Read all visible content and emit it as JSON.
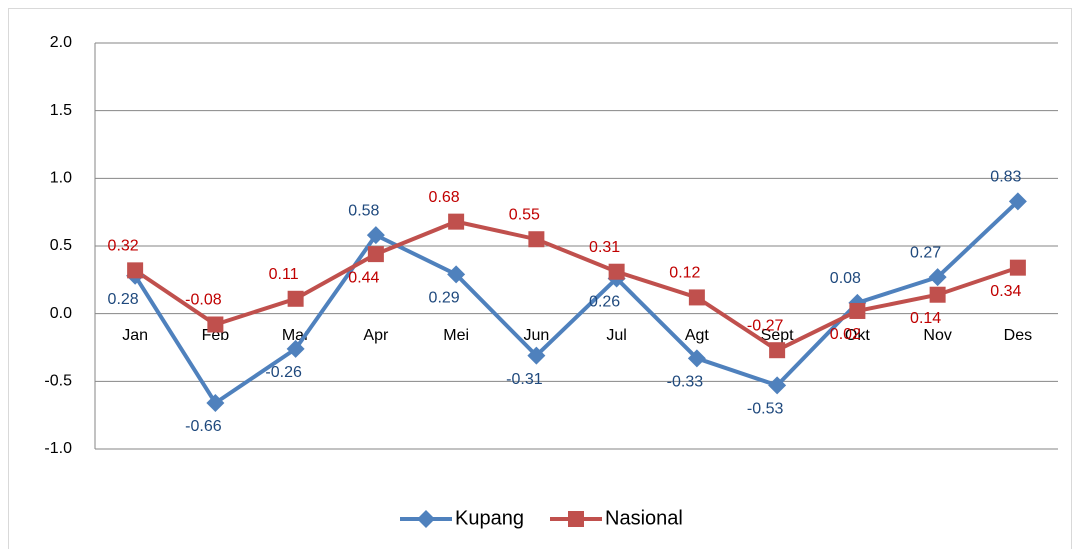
{
  "chart_data": {
    "type": "line",
    "categories": [
      "Jan",
      "Feb",
      "Mar",
      "Apr",
      "Mei",
      "Jun",
      "Jul",
      "Agt",
      "Sept",
      "Okt",
      "Nov",
      "Des"
    ],
    "series": [
      {
        "name": "Kupang",
        "color": "#4f81bd",
        "label_color": "#1f497d",
        "marker": "diamond",
        "values": [
          0.28,
          -0.66,
          -0.26,
          0.58,
          0.29,
          -0.31,
          0.26,
          -0.33,
          -0.53,
          0.08,
          0.27,
          0.83
        ]
      },
      {
        "name": "Nasional",
        "color": "#c0504d",
        "label_color": "#c00000",
        "marker": "square",
        "values": [
          0.32,
          -0.08,
          0.11,
          0.44,
          0.68,
          0.55,
          0.31,
          0.12,
          -0.27,
          0.02,
          0.14,
          0.34
        ]
      }
    ],
    "ylim": [
      -1,
      2
    ],
    "yticks": [
      {
        "value": -1,
        "label": "-1.0"
      },
      -0.5,
      {
        "value": 0,
        "label": "0.0"
      },
      0.5,
      {
        "value": 1,
        "label": "1.0"
      },
      1.5,
      {
        "value": 2,
        "label": "2.0"
      }
    ],
    "grid": true,
    "legend": "bottom"
  }
}
